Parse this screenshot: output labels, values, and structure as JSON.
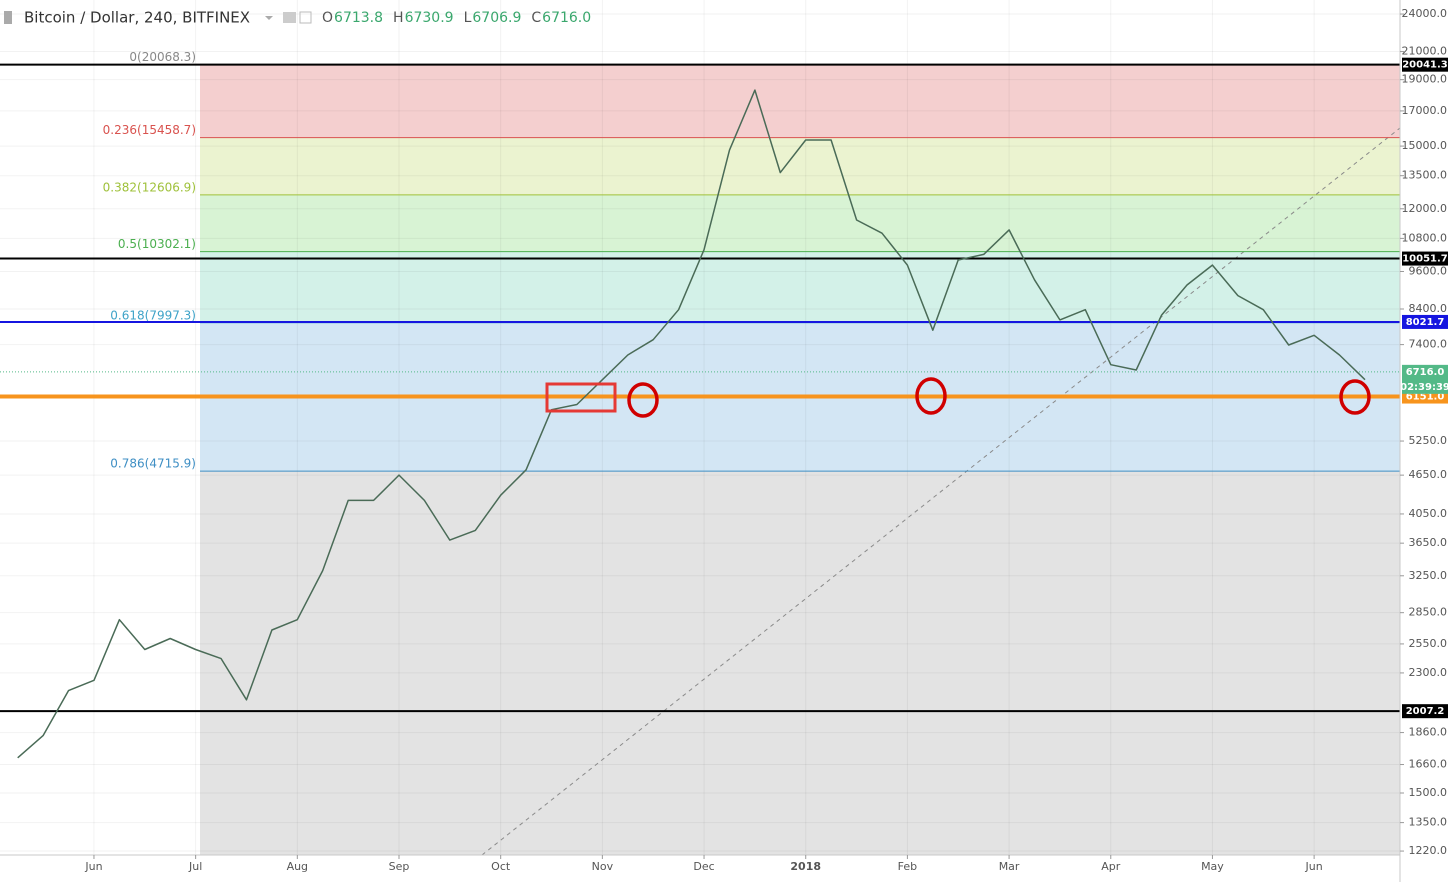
{
  "header": {
    "symbol": "Bitcoin / Dollar, 240, BITFINEX",
    "ohlc": [
      {
        "key": "O",
        "value": "6713.8"
      },
      {
        "key": "H",
        "value": "6730.9"
      },
      {
        "key": "L",
        "value": "6706.9"
      },
      {
        "key": "C",
        "value": "6716.0"
      }
    ]
  },
  "chart_data": {
    "type": "line",
    "log": true,
    "grid": true,
    "categories": [
      null,
      null,
      null,
      "Jun",
      null,
      null,
      null,
      "Jul",
      null,
      null,
      null,
      "Aug",
      null,
      null,
      null,
      "Sep",
      null,
      null,
      null,
      "Oct",
      null,
      null,
      null,
      "Nov",
      null,
      null,
      null,
      "Dec",
      null,
      null,
      null,
      "2018",
      null,
      null,
      null,
      "Feb",
      null,
      null,
      null,
      "Mar",
      null,
      null,
      null,
      "Apr",
      null,
      null,
      null,
      "May",
      null,
      null,
      null,
      "Jun",
      null,
      null
    ],
    "series": [
      {
        "name": "BTCUSD",
        "color": "#4a6b57",
        "values": [
          1700,
          1840,
          2160,
          2240,
          2780,
          2500,
          2600,
          2500,
          2420,
          2090,
          2680,
          2780,
          3310,
          4250,
          4250,
          4650,
          4250,
          3690,
          3820,
          4330,
          4740,
          5870,
          5980,
          6530,
          7130,
          7530,
          8380,
          10370,
          14790,
          18310,
          13650,
          15330,
          15330,
          11530,
          11000,
          9820,
          7790,
          10000,
          10200,
          11130,
          9320,
          8080,
          8380,
          6890,
          6760,
          8220,
          9150,
          9820,
          8810,
          8380,
          7390,
          7650,
          7130,
          6530
        ]
      }
    ],
    "ylim": [
      1203,
      25230
    ],
    "yticks": [
      {
        "value": 24000,
        "label": "24000.0"
      },
      {
        "value": 21000,
        "label": "21000.0"
      },
      {
        "value": 19000,
        "label": "19000.0"
      },
      {
        "value": 17000,
        "label": "17000.0"
      },
      {
        "value": 15000,
        "label": "15000.0"
      },
      {
        "value": 13500,
        "label": "13500.0"
      },
      {
        "value": 12000,
        "label": "12000.0"
      },
      {
        "value": 10800,
        "label": "10800.0"
      },
      {
        "value": 9600,
        "label": "9600.0"
      },
      {
        "value": 8400,
        "label": "8400.0"
      },
      {
        "value": 7400,
        "label": "7400.0"
      },
      {
        "value": 5250,
        "label": "5250.0"
      },
      {
        "value": 4650,
        "label": "4650.0"
      },
      {
        "value": 4050,
        "label": "4050.0"
      },
      {
        "value": 3650,
        "label": "3650.0"
      },
      {
        "value": 3250,
        "label": "3250.0"
      },
      {
        "value": 2850,
        "label": "2850.0"
      },
      {
        "value": 2550,
        "label": "2550.0"
      },
      {
        "value": 2300,
        "label": "2300.0"
      },
      {
        "value": 1860,
        "label": "1860.0"
      },
      {
        "value": 1660,
        "label": "1660.0"
      },
      {
        "value": 1500,
        "label": "1500.0"
      },
      {
        "value": 1350,
        "label": "1350.0"
      },
      {
        "value": 1220,
        "label": "1220.0"
      }
    ],
    "fib_levels": [
      {
        "value": 20068.3,
        "label": "0(20068.3)",
        "color": "#888888",
        "fill": "#f4cfcf"
      },
      {
        "value": 15458.7,
        "label": "0.236(15458.7)",
        "color": "#d9534f",
        "fill": "#ebf3d0"
      },
      {
        "value": 12606.9,
        "label": "0.382(12606.9)",
        "color": "#9fc13a",
        "fill": "#d8f3d4"
      },
      {
        "value": 10302.1,
        "label": "0.5(10302.1)",
        "color": "#4caf50",
        "fill": "#d3f1e8"
      },
      {
        "value": 7997.3,
        "label": "0.618(7997.3)",
        "color": "#3fa3c8",
        "fill": "#d3e6f4"
      },
      {
        "value": 4715.9,
        "label": "0.786(4715.9)",
        "color": "#3f8fc4",
        "fill": "#e3e3e3"
      }
    ],
    "hlines": [
      {
        "value": 20041.3,
        "color": "#000000"
      },
      {
        "value": 10051.7,
        "color": "#000000"
      },
      {
        "value": 8021.7,
        "color": "#1515e0"
      },
      {
        "value": 6151,
        "label": "6151.0",
        "color": "#f7941d"
      },
      {
        "value": 2007.2,
        "color": "#000000"
      }
    ],
    "last": {
      "value": 6716,
      "label": "6716.0",
      "countdown": "02:39:39",
      "color": "#53b987"
    }
  }
}
